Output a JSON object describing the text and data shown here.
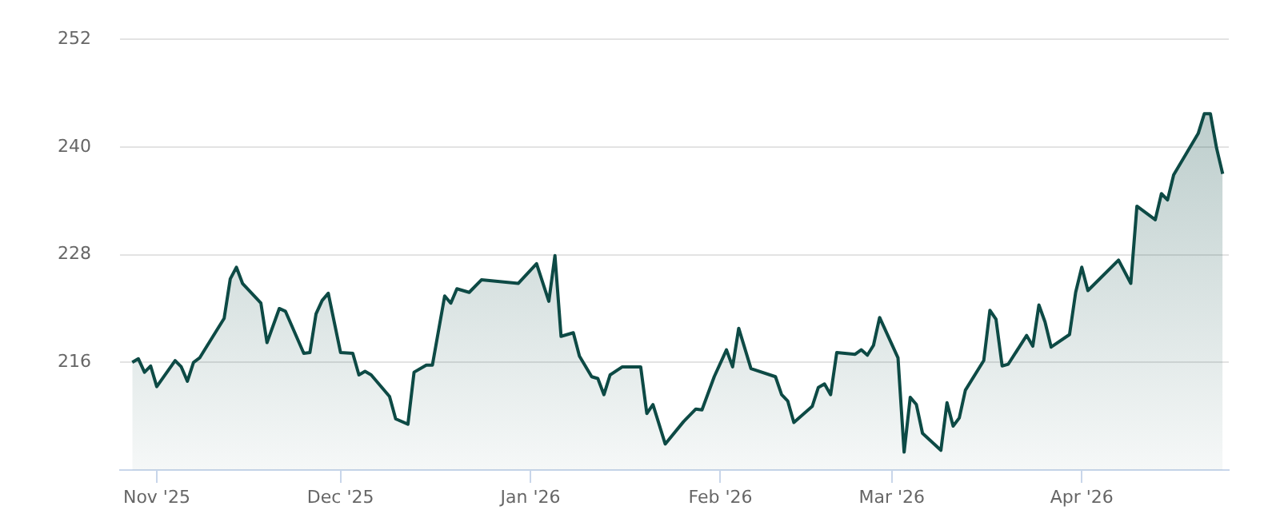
{
  "chart_data": {
    "type": "area",
    "color": "#0d4a45",
    "x": [
      "2025-10-28",
      "2025-10-29",
      "2025-10-30",
      "2025-10-31",
      "2025-11-01",
      "2025-11-04",
      "2025-11-05",
      "2025-11-06",
      "2025-11-07",
      "2025-11-08",
      "2025-11-12",
      "2025-11-13",
      "2025-11-14",
      "2025-11-15",
      "2025-11-18",
      "2025-11-19",
      "2025-11-21",
      "2025-11-22",
      "2025-11-25",
      "2025-11-26",
      "2025-11-27",
      "2025-11-28",
      "2025-11-29",
      "2025-12-01",
      "2025-12-03",
      "2025-12-04",
      "2025-12-05",
      "2025-12-06",
      "2025-12-09",
      "2025-12-10",
      "2025-12-12",
      "2025-12-13",
      "2025-12-15",
      "2025-12-16",
      "2025-12-18",
      "2025-12-19",
      "2025-12-20",
      "2025-12-22",
      "2025-12-24",
      "2025-12-30",
      "2026-01-02",
      "2026-01-04",
      "2026-01-05",
      "2026-01-06",
      "2026-01-08",
      "2026-01-09",
      "2026-01-11",
      "2026-01-12",
      "2026-01-13",
      "2026-01-14",
      "2026-01-16",
      "2026-01-19",
      "2026-01-20",
      "2026-01-21",
      "2026-01-23",
      "2026-01-26",
      "2026-01-28",
      "2026-01-29",
      "2026-01-31",
      "2026-02-02",
      "2026-02-03",
      "2026-02-04",
      "2026-02-06",
      "2026-02-10",
      "2026-02-11",
      "2026-02-12",
      "2026-02-13",
      "2026-02-16",
      "2026-02-17",
      "2026-02-18",
      "2026-02-19",
      "2026-02-20",
      "2026-02-23",
      "2026-02-24",
      "2026-02-25",
      "2026-02-26",
      "2026-02-27",
      "2026-03-02",
      "2026-03-03",
      "2026-03-04",
      "2026-03-05",
      "2026-03-06",
      "2026-03-09",
      "2026-03-10",
      "2026-03-11",
      "2026-03-12",
      "2026-03-13",
      "2026-03-16",
      "2026-03-17",
      "2026-03-18",
      "2026-03-19",
      "2026-03-20",
      "2026-03-23",
      "2026-03-24",
      "2026-03-25",
      "2026-03-26",
      "2026-03-27",
      "2026-03-30",
      "2026-03-31",
      "2026-04-01",
      "2026-04-02",
      "2026-04-07",
      "2026-04-09",
      "2026-04-10",
      "2026-04-13",
      "2026-04-14",
      "2026-04-15",
      "2026-04-16",
      "2026-04-20",
      "2026-04-21",
      "2026-04-22",
      "2026-04-23",
      "2026-04-24"
    ],
    "values": [
      216.0,
      216.4,
      214.9,
      215.6,
      213.3,
      216.2,
      215.5,
      213.9,
      216.0,
      216.5,
      220.9,
      225.3,
      226.6,
      224.8,
      222.6,
      218.2,
      222.0,
      221.7,
      217.0,
      217.1,
      221.4,
      222.9,
      223.7,
      217.1,
      217.0,
      214.6,
      215.0,
      214.6,
      212.2,
      209.7,
      209.1,
      214.9,
      215.7,
      215.7,
      223.4,
      222.6,
      224.2,
      223.8,
      225.2,
      224.8,
      227.0,
      222.8,
      227.9,
      218.9,
      219.3,
      216.7,
      214.4,
      214.2,
      212.4,
      214.6,
      215.5,
      215.5,
      210.3,
      211.3,
      206.9,
      209.4,
      210.8,
      210.7,
      214.4,
      217.4,
      215.5,
      219.8,
      215.3,
      214.4,
      212.4,
      211.7,
      209.3,
      211.1,
      213.2,
      213.6,
      212.4,
      217.1,
      216.9,
      217.4,
      216.8,
      217.9,
      221.0,
      216.5,
      206.0,
      212.1,
      211.3,
      208.1,
      206.2,
      211.5,
      208.9,
      209.8,
      212.9,
      216.2,
      221.8,
      220.8,
      215.6,
      215.8,
      219.0,
      217.8,
      222.4,
      220.5,
      217.7,
      219.1,
      223.8,
      226.6,
      224.0,
      227.4,
      224.8,
      233.4,
      231.9,
      234.8,
      234.1,
      236.9,
      241.5,
      243.7,
      243.7,
      239.9,
      237.0
    ],
    "xlim": [
      "2025-10-26",
      "2026-04-25"
    ],
    "xticks": [
      {
        "value": "2025-11-01",
        "label": "Nov '25"
      },
      {
        "value": "2025-12-01",
        "label": "Dec '25"
      },
      {
        "value": "2026-01-01",
        "label": "Jan '26"
      },
      {
        "value": "2026-02-01",
        "label": "Feb '26"
      },
      {
        "value": "2026-03-01",
        "label": "Mar '26"
      },
      {
        "value": "2026-04-01",
        "label": "Apr '26"
      }
    ],
    "ylim": [
      204,
      252
    ],
    "yticks": [
      216,
      228,
      240,
      252
    ],
    "grid": "y"
  }
}
